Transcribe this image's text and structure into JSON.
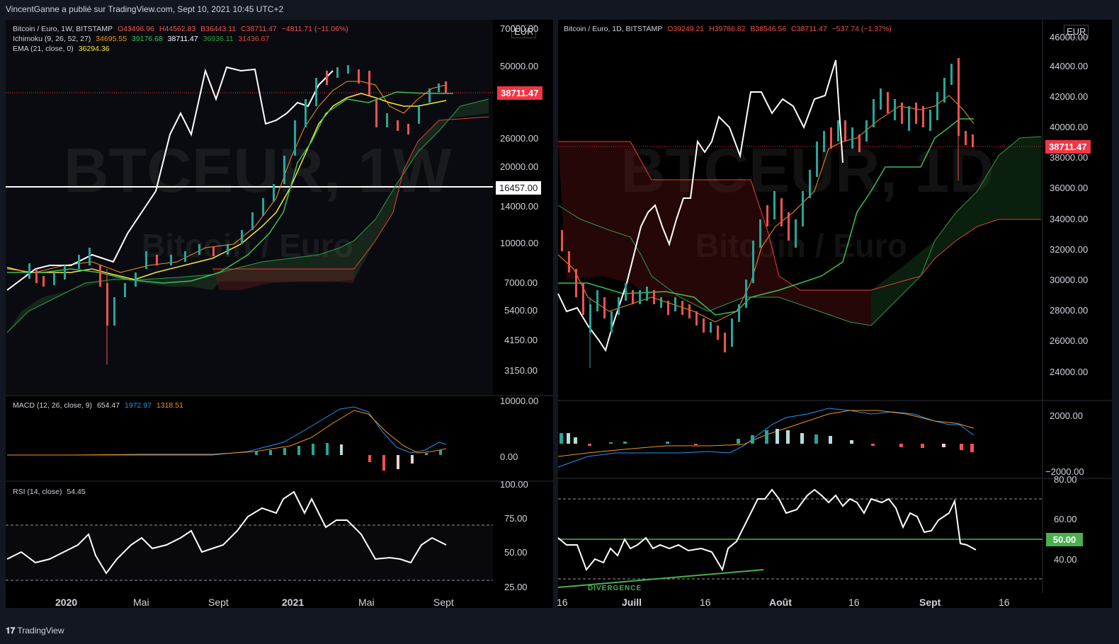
{
  "header": {
    "publisher": "VincentGanne a  publié sur TradingView.com, Sept 10, 2021 10:45 UTC+2"
  },
  "footer": {
    "brand": "TradingView",
    "logo_icon": "tradingview-logo-icon"
  },
  "left": {
    "watermark_symbol": "BTCEUR, 1W",
    "watermark_name": "Bitcoin / Euro",
    "currency": "EUR",
    "legend": {
      "title": "Bitcoin / Euro, 1W, BITSTAMP",
      "o": "O43496.96",
      "h": "H44562.83",
      "l": "B36443.11",
      "c": "C38711.47",
      "chg": "−4811.71 (−11.06%)",
      "ichimoku_label": "Ichimoku (9, 26, 52, 27)",
      "ichi_v1": "34695.55",
      "ichi_v2": "39176.68",
      "ichi_v3": "38711.47",
      "ichi_v4": "36936.11",
      "ichi_v5": "31436.67",
      "ema_label": "EMA (21, close, 0)",
      "ema_val": "36294.36",
      "macd_label": "MACD (12, 26, close, 9)",
      "macd_v1": "654.47",
      "macd_v2": "1972.97",
      "macd_v3": "1318.51",
      "rsi_label": "RSI (14, close)",
      "rsi_val": "54.45"
    },
    "price_ticks": [
      "70000.00",
      "50000.00",
      "26000.00",
      "20000.00",
      "14000.00",
      "10000.00",
      "7000.00",
      "5400.00",
      "4150.00",
      "3150.00"
    ],
    "price_badge": "38711.47",
    "hline_badge": "16457.00",
    "macd_ticks": [
      "10000.00",
      "0.00"
    ],
    "rsi_ticks": [
      "100.00",
      "75.00",
      "50.00",
      "25.00"
    ],
    "x_ticks": [
      "2020",
      "Mai",
      "Sept",
      "2021",
      "Mai",
      "Sept"
    ]
  },
  "right": {
    "watermark_symbol": "BTCEUR, 1D",
    "watermark_name": "Bitcoin / Euro",
    "currency": "EUR",
    "legend": {
      "title": "Bitcoin / Euro, 1D, BITSTAMP",
      "o": "O39249.21",
      "h": "H39786.82",
      "l": "B38546.56",
      "c": "C38711.47",
      "chg": "−537.74 (−1.37%)"
    },
    "price_ticks": [
      "46000.00",
      "44000.00",
      "42000.00",
      "40000.00",
      "38000.00",
      "36000.00",
      "34000.00",
      "32000.00",
      "30000.00",
      "28000.00",
      "26000.00",
      "24000.00"
    ],
    "price_badge": "38711.47",
    "macd_ticks": [
      "2000.00",
      "−2000.00"
    ],
    "rsi_ticks": [
      "80.00",
      "60.00",
      "40.00"
    ],
    "rsi_badge": "50.00",
    "divergence_label": "DIVERGENCE",
    "x_ticks": [
      "16",
      "Juill",
      "16",
      "Août",
      "16",
      "Sept",
      "16"
    ]
  },
  "chart_data": [
    {
      "type": "line",
      "title": "Bitcoin / Euro, 1W, BITSTAMP",
      "x": [
        "2019-11",
        "2019-12",
        "2020-01",
        "2020-02",
        "2020-03",
        "2020-04",
        "2020-05",
        "2020-06",
        "2020-07",
        "2020-08",
        "2020-09",
        "2020-10",
        "2020-11",
        "2020-12",
        "2021-01",
        "2021-02",
        "2021-03",
        "2021-04",
        "2021-05",
        "2021-06",
        "2021-07",
        "2021-08",
        "2021-09"
      ],
      "series": [
        {
          "values": [
            7800,
            6600,
            6500,
            9000,
            5400,
            6500,
            8200,
            8400,
            8500,
            10000,
            9100,
            11000,
            15000,
            20000,
            28000,
            38000,
            48000,
            47000,
            31000,
            29000,
            27000,
            40000,
            38711
          ]
        }
      ],
      "horizontal_line": 16457
    },
    {
      "type": "line",
      "title": "Bitcoin / Euro, 1D, BITSTAMP",
      "x": [
        "06-12",
        "06-16",
        "06-20",
        "06-24",
        "06-28",
        "07-01",
        "07-05",
        "07-09",
        "07-13",
        "07-16",
        "07-20",
        "07-24",
        "07-28",
        "08-01",
        "08-05",
        "08-09",
        "08-13",
        "08-16",
        "08-20",
        "08-24",
        "08-28",
        "09-01",
        "09-05",
        "09-07",
        "09-10"
      ],
      "series": [
        {
          "values": [
            32000,
            33000,
            28000,
            27000,
            29000,
            29500,
            29000,
            28800,
            27800,
            27500,
            26500,
            28000,
            33000,
            34500,
            33000,
            36000,
            38500,
            38500,
            39500,
            41000,
            40500,
            40200,
            43800,
            38000,
            38711
          ]
        }
      ],
      "horizontal_line": 38711.47
    }
  ]
}
